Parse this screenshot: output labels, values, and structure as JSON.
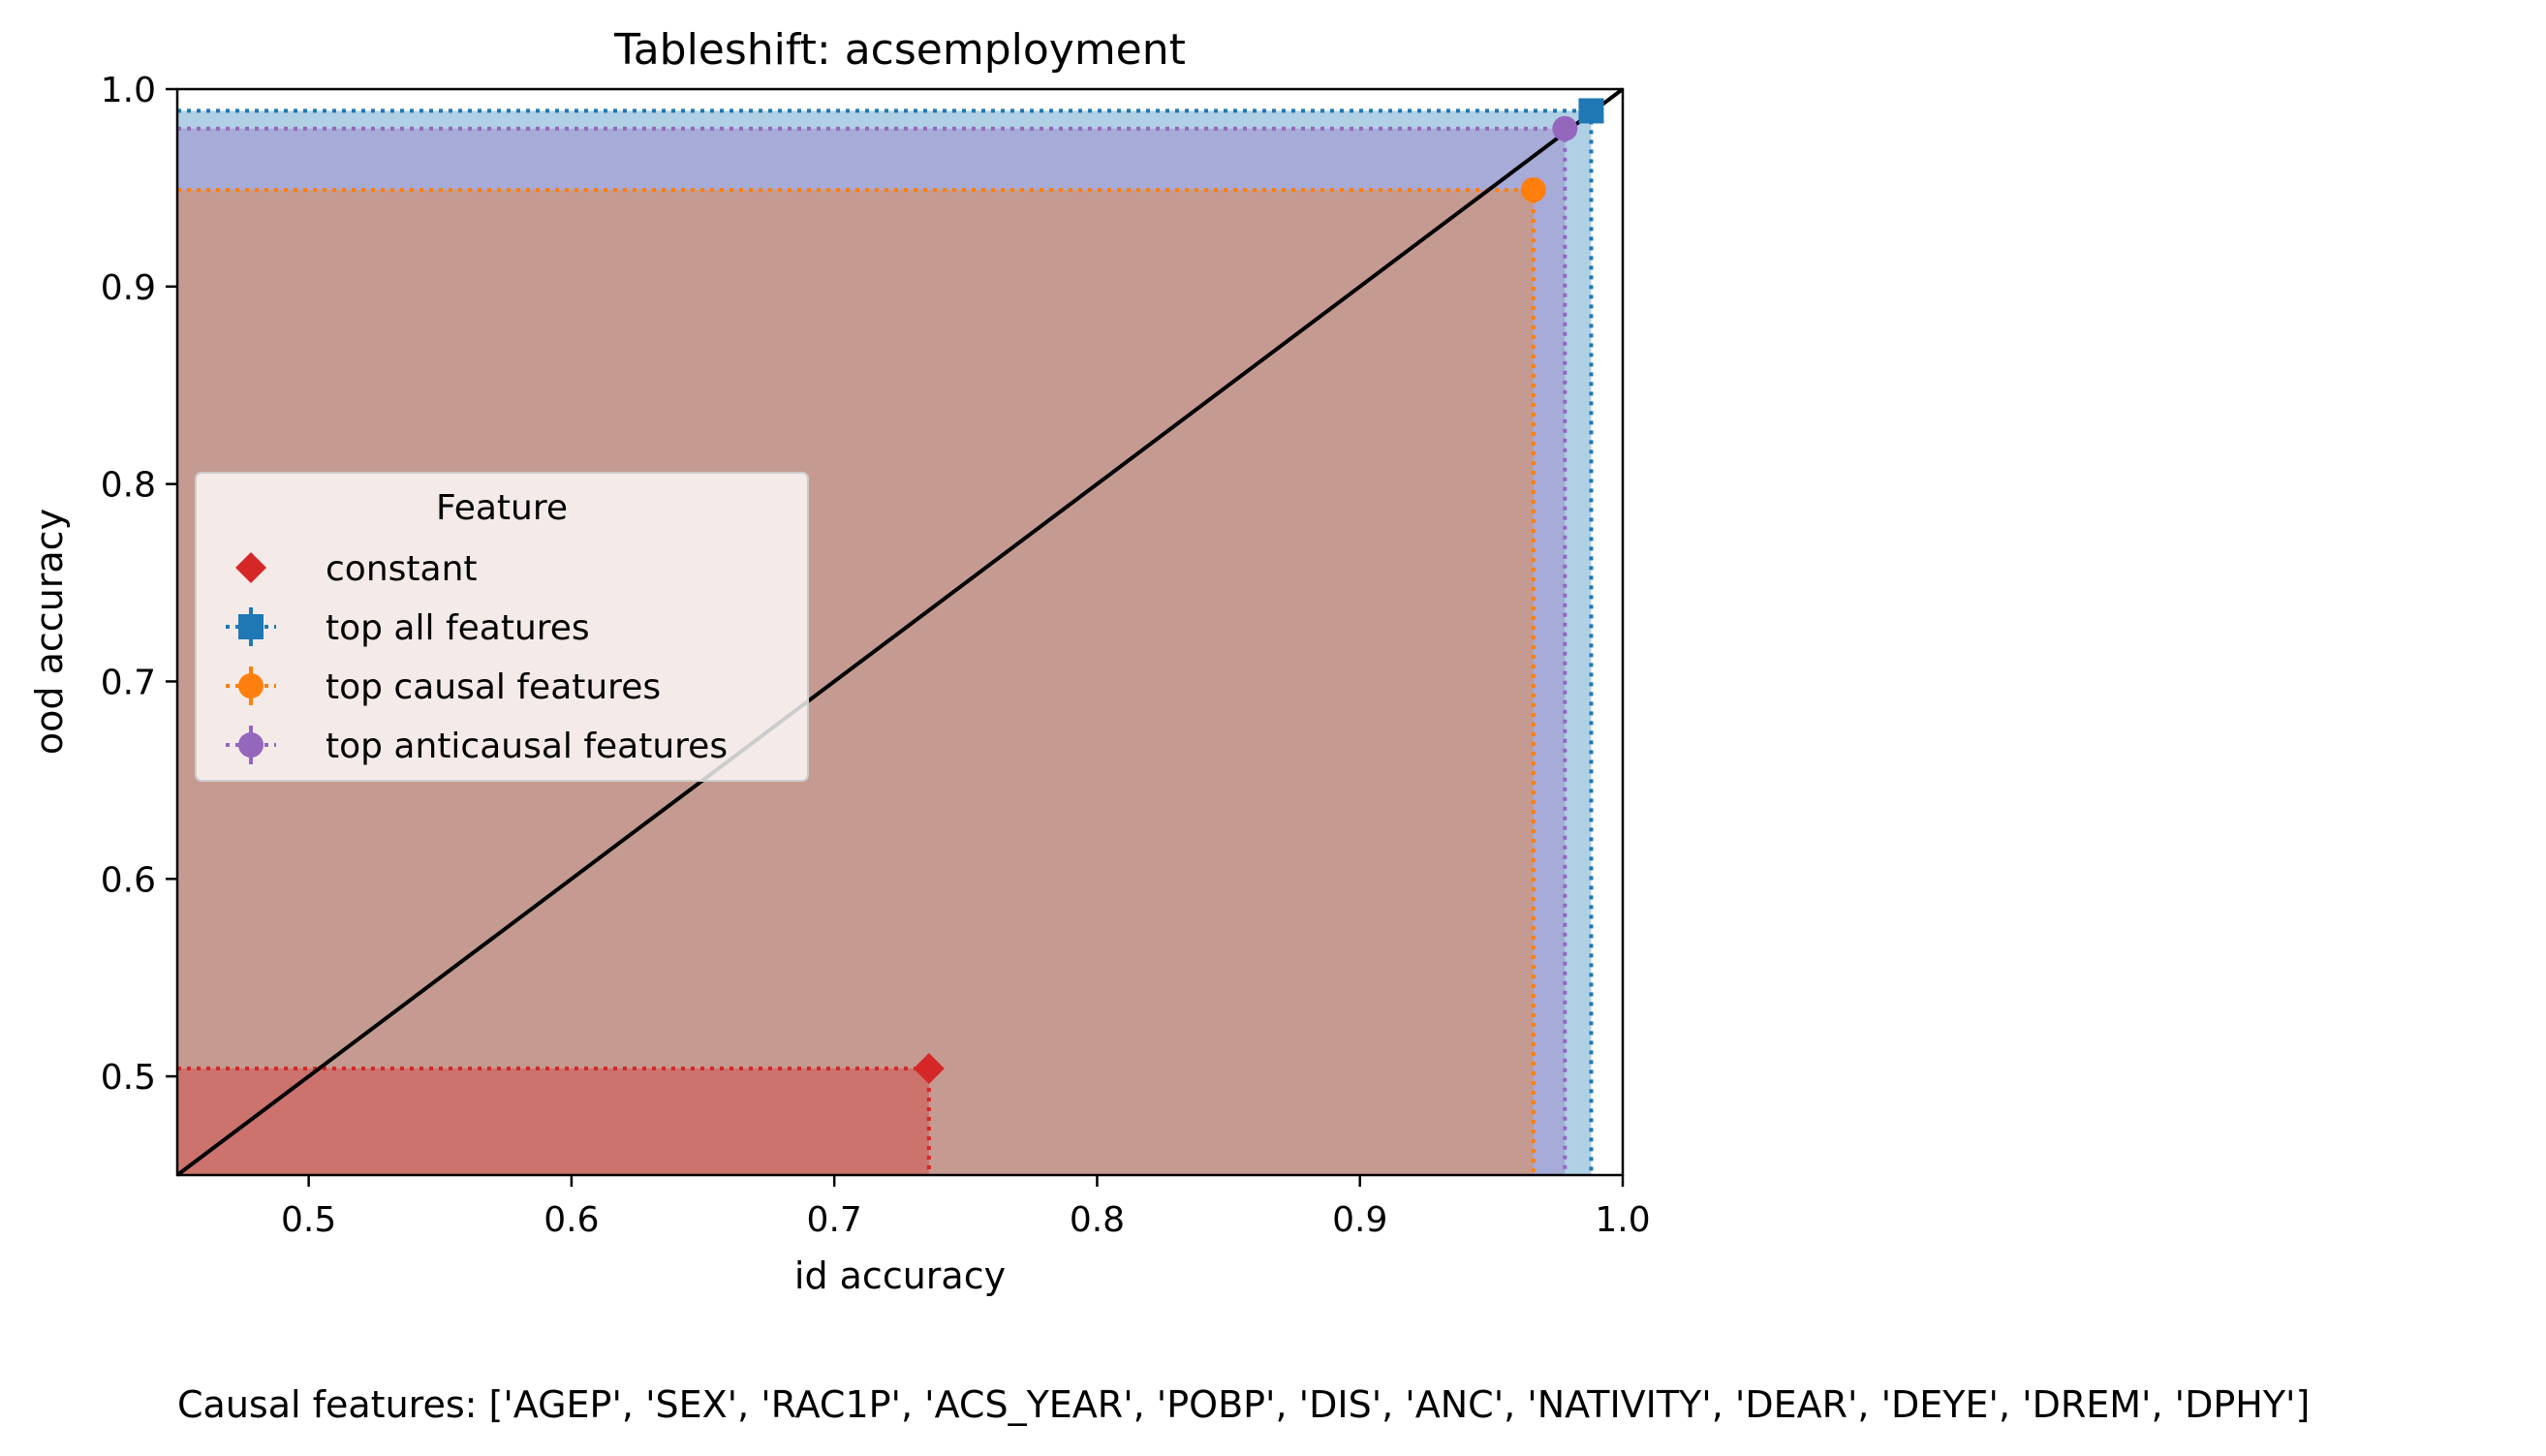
{
  "chart_data": {
    "type": "scatter",
    "title": "Tableshift: acsemployment",
    "xlabel": "id accuracy",
    "ylabel": "ood accuracy",
    "xlim": [
      0.45,
      1.0
    ],
    "ylim": [
      0.45,
      1.0
    ],
    "xticks": [
      "0.5",
      "0.6",
      "0.7",
      "0.8",
      "0.9",
      "1.0"
    ],
    "yticks": [
      "0.5",
      "0.6",
      "0.7",
      "0.8",
      "0.9",
      "1.0"
    ],
    "diagonal": true,
    "legend": {
      "title": "Feature",
      "placement": "center-left"
    },
    "series": [
      {
        "name": "constant",
        "marker": "diamond",
        "color": "#d62728",
        "x": 0.736,
        "y": 0.504
      },
      {
        "name": "top all features",
        "marker": "square",
        "color": "#1f77b4",
        "x": 0.988,
        "y": 0.989
      },
      {
        "name": "top causal features",
        "marker": "circle",
        "color": "#ff7f0e",
        "x": 0.966,
        "y": 0.949
      },
      {
        "name": "top anticausal features",
        "marker": "circle",
        "color": "#9467bd",
        "x": 0.978,
        "y": 0.98
      }
    ]
  },
  "footnote": "Causal features: ['AGEP', 'SEX', 'RAC1P', 'ACS_YEAR', 'POBP', 'DIS', 'ANC', 'NATIVITY', 'DEAR', 'DEYE', 'DREM', 'DPHY']"
}
